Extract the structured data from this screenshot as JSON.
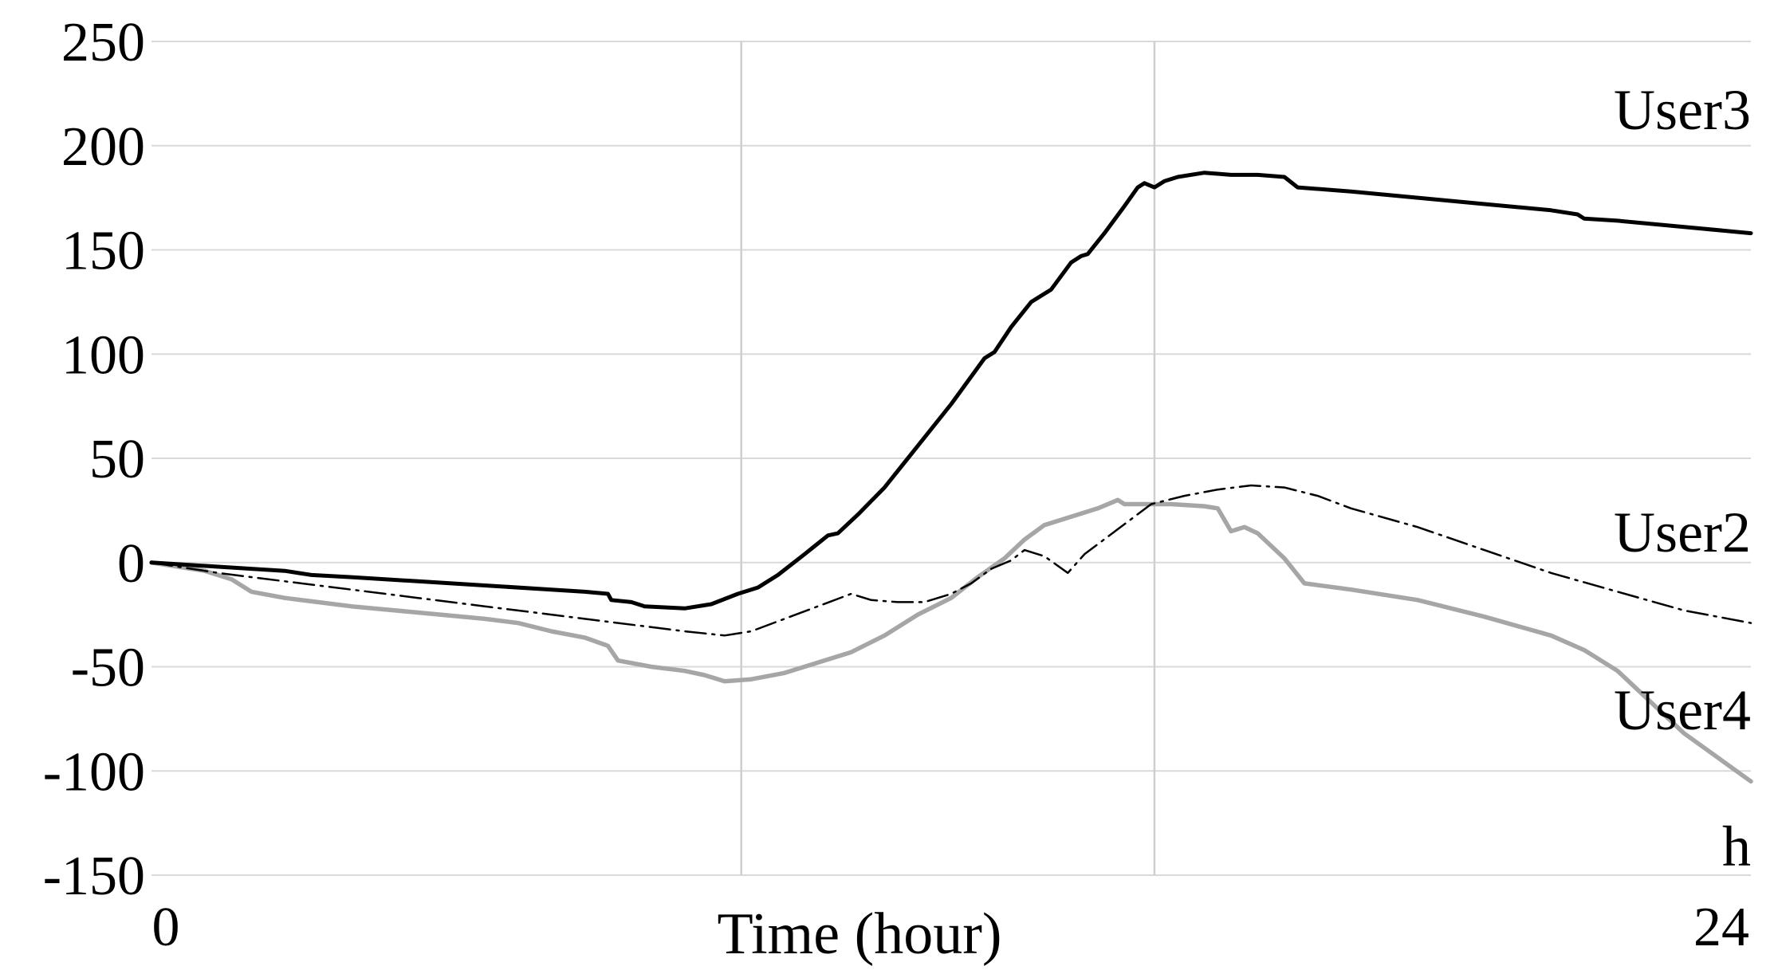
{
  "chart_data": {
    "type": "line",
    "title": "",
    "xlabel": "Time (hour)",
    "ylabel": "",
    "x_unit_label": "h",
    "xlim": [
      0,
      24
    ],
    "ylim": [
      -150,
      250
    ],
    "x_tick_labels": [
      {
        "value": 0,
        "label": "0"
      },
      {
        "value": 24,
        "label": "24"
      }
    ],
    "y_ticks": [
      250,
      200,
      150,
      100,
      50,
      0,
      -50,
      -100,
      -150
    ],
    "y_tick_labels": [
      "250",
      "200",
      "150",
      "100",
      "50",
      "0",
      "-50",
      "-100",
      "-150"
    ],
    "vertical_gridlines_x": [
      8.85,
      15.05
    ],
    "grid": true,
    "series": [
      {
        "name": "User3",
        "color": "#000000",
        "style": "solid",
        "points": [
          [
            0,
            0
          ],
          [
            1.0,
            -2
          ],
          [
            2.0,
            -4
          ],
          [
            2.4,
            -6
          ],
          [
            3.0,
            -7
          ],
          [
            4.0,
            -9
          ],
          [
            5.0,
            -11
          ],
          [
            6.0,
            -13
          ],
          [
            6.5,
            -14
          ],
          [
            6.85,
            -15
          ],
          [
            6.9,
            -18
          ],
          [
            7.2,
            -19
          ],
          [
            7.4,
            -21
          ],
          [
            8.0,
            -22
          ],
          [
            8.4,
            -20
          ],
          [
            8.8,
            -15
          ],
          [
            9.1,
            -12
          ],
          [
            9.4,
            -6
          ],
          [
            9.8,
            4
          ],
          [
            10.15,
            13
          ],
          [
            10.3,
            14
          ],
          [
            10.6,
            23
          ],
          [
            11.0,
            36
          ],
          [
            11.5,
            56
          ],
          [
            12.0,
            76
          ],
          [
            12.5,
            98
          ],
          [
            12.65,
            101
          ],
          [
            12.9,
            113
          ],
          [
            13.2,
            125
          ],
          [
            13.5,
            131
          ],
          [
            13.8,
            144
          ],
          [
            13.95,
            147
          ],
          [
            14.05,
            148
          ],
          [
            14.3,
            158
          ],
          [
            14.6,
            171
          ],
          [
            14.8,
            180
          ],
          [
            14.9,
            182
          ],
          [
            15.05,
            180
          ],
          [
            15.2,
            183
          ],
          [
            15.4,
            185
          ],
          [
            15.8,
            187
          ],
          [
            16.2,
            186
          ],
          [
            16.6,
            186
          ],
          [
            17.0,
            185
          ],
          [
            17.2,
            180
          ],
          [
            18.0,
            178
          ],
          [
            19.0,
            175
          ],
          [
            20.0,
            172
          ],
          [
            21.0,
            169
          ],
          [
            21.4,
            167
          ],
          [
            21.5,
            165
          ],
          [
            22.0,
            164
          ],
          [
            23.0,
            161
          ],
          [
            24.0,
            158
          ]
        ]
      },
      {
        "name": "User2",
        "color": "#000000",
        "style": "dash-dot",
        "points": [
          [
            0,
            0
          ],
          [
            1.0,
            -5
          ],
          [
            2.0,
            -9
          ],
          [
            3.0,
            -13
          ],
          [
            4.0,
            -17
          ],
          [
            5.0,
            -21
          ],
          [
            6.0,
            -25
          ],
          [
            7.0,
            -29
          ],
          [
            8.0,
            -33
          ],
          [
            8.6,
            -35
          ],
          [
            9.0,
            -33
          ],
          [
            9.5,
            -27
          ],
          [
            10.0,
            -21
          ],
          [
            10.5,
            -15
          ],
          [
            10.8,
            -18
          ],
          [
            11.2,
            -19
          ],
          [
            11.6,
            -19
          ],
          [
            12.0,
            -15
          ],
          [
            12.3,
            -10
          ],
          [
            12.6,
            -3
          ],
          [
            12.9,
            1
          ],
          [
            13.1,
            6
          ],
          [
            13.4,
            3
          ],
          [
            13.75,
            -5
          ],
          [
            14.0,
            4
          ],
          [
            14.5,
            16
          ],
          [
            15.0,
            28
          ],
          [
            15.5,
            32
          ],
          [
            16.0,
            35
          ],
          [
            16.5,
            37
          ],
          [
            17.0,
            36
          ],
          [
            17.5,
            32
          ],
          [
            18.0,
            26
          ],
          [
            19.0,
            17
          ],
          [
            20.0,
            6
          ],
          [
            21.0,
            -5
          ],
          [
            22.0,
            -14
          ],
          [
            23.0,
            -23
          ],
          [
            24.0,
            -29
          ]
        ]
      },
      {
        "name": "User4",
        "color": "#a6a6a6",
        "style": "solid",
        "points": [
          [
            0,
            0
          ],
          [
            0.8,
            -4
          ],
          [
            1.2,
            -8
          ],
          [
            1.5,
            -14
          ],
          [
            2.0,
            -17
          ],
          [
            3.0,
            -21
          ],
          [
            4.0,
            -24
          ],
          [
            5.0,
            -27
          ],
          [
            5.5,
            -29
          ],
          [
            6.0,
            -33
          ],
          [
            6.5,
            -36
          ],
          [
            6.85,
            -40
          ],
          [
            7.0,
            -47
          ],
          [
            7.5,
            -50
          ],
          [
            8.0,
            -52
          ],
          [
            8.3,
            -54
          ],
          [
            8.6,
            -57
          ],
          [
            9.0,
            -56
          ],
          [
            9.5,
            -53
          ],
          [
            10.0,
            -48
          ],
          [
            10.5,
            -43
          ],
          [
            11.0,
            -35
          ],
          [
            11.5,
            -25
          ],
          [
            12.0,
            -17
          ],
          [
            12.4,
            -7
          ],
          [
            12.8,
            2
          ],
          [
            13.1,
            11
          ],
          [
            13.4,
            18
          ],
          [
            13.8,
            22
          ],
          [
            14.2,
            26
          ],
          [
            14.5,
            30
          ],
          [
            14.6,
            28
          ],
          [
            15.0,
            28
          ],
          [
            15.3,
            28
          ],
          [
            15.8,
            27
          ],
          [
            16.0,
            26
          ],
          [
            16.2,
            15
          ],
          [
            16.4,
            17
          ],
          [
            16.6,
            14
          ],
          [
            17.0,
            2
          ],
          [
            17.3,
            -10
          ],
          [
            18.0,
            -13
          ],
          [
            19.0,
            -18
          ],
          [
            20.0,
            -26
          ],
          [
            21.0,
            -35
          ],
          [
            21.5,
            -42
          ],
          [
            22.0,
            -52
          ],
          [
            23.0,
            -82
          ],
          [
            24.0,
            -105
          ]
        ]
      }
    ],
    "labels": {
      "user3": "User3",
      "user2": "User2",
      "user4": "User4",
      "unit": "h",
      "xlabel": "Time (hour)"
    }
  }
}
